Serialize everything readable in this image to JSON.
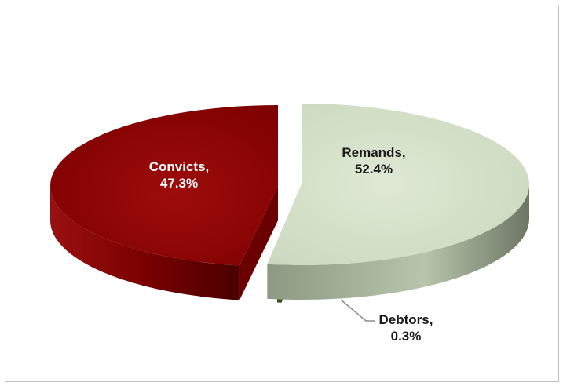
{
  "chart_data": {
    "type": "pie",
    "style": "3d-exploded",
    "slices": [
      {
        "name": "Remands",
        "value": 52.4,
        "label_line1": "Remands,",
        "label_line2": "52.4%",
        "color": "#d8e4cc"
      },
      {
        "name": "Convicts",
        "value": 47.3,
        "label_line1": "Convicts,",
        "label_line2": "47.3%",
        "color": "#8b0000"
      },
      {
        "name": "Debtors",
        "value": 0.3,
        "label_line1": "Debtors,",
        "label_line2": "0.3%",
        "color": "#3f6a1a"
      }
    ],
    "unit": "%",
    "title": ""
  }
}
